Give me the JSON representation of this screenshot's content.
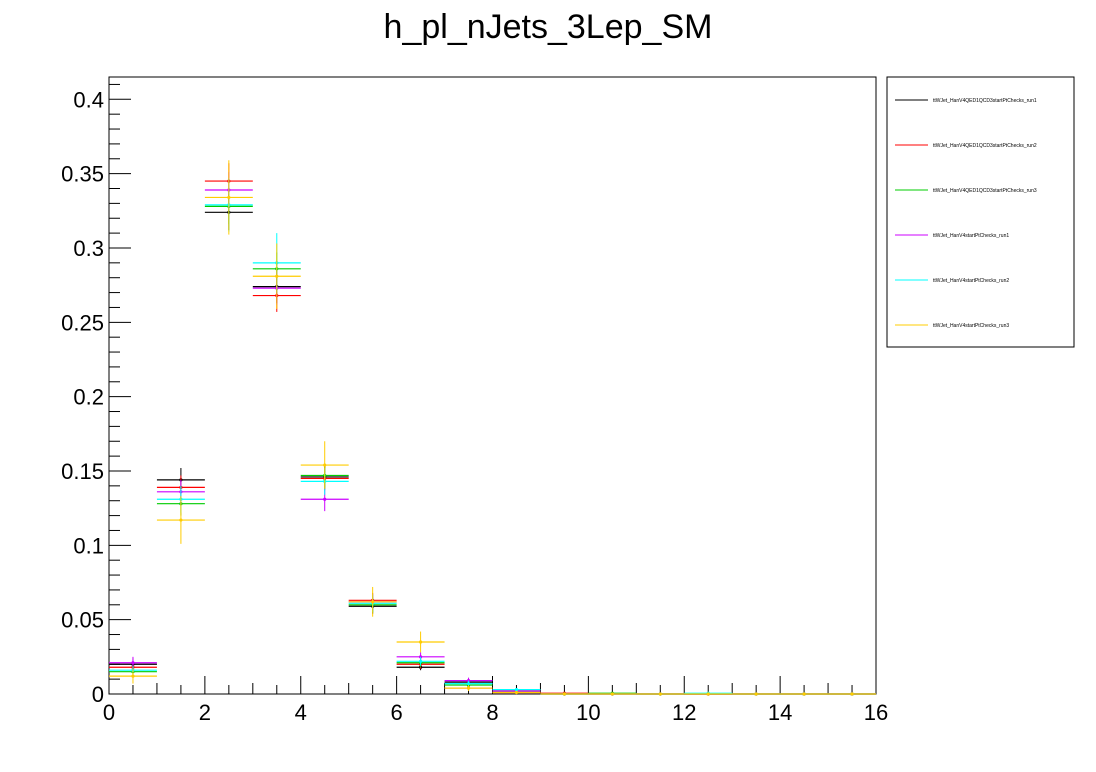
{
  "chart_data": {
    "type": "scatter",
    "title": "h_pl_nJets_3Lep_SM",
    "xlabel": "",
    "ylabel": "",
    "xlim": [
      0,
      16
    ],
    "ylim": [
      0,
      0.415
    ],
    "bin_width": 1,
    "x_ticks": [
      {
        "value": 0,
        "label": "0"
      },
      {
        "value": 2,
        "label": "2"
      },
      {
        "value": 4,
        "label": "4"
      },
      {
        "value": 6,
        "label": "6"
      },
      {
        "value": 8,
        "label": "8"
      },
      {
        "value": 10,
        "label": "10"
      },
      {
        "value": 12,
        "label": "12"
      },
      {
        "value": 14,
        "label": "14"
      },
      {
        "value": 16,
        "label": "16"
      }
    ],
    "y_ticks": [
      {
        "value": 0,
        "label": "0"
      },
      {
        "value": 0.05,
        "label": "0.05"
      },
      {
        "value": 0.1,
        "label": "0.1"
      },
      {
        "value": 0.15,
        "label": "0.15"
      },
      {
        "value": 0.2,
        "label": "0.2"
      },
      {
        "value": 0.25,
        "label": "0.25"
      },
      {
        "value": 0.3,
        "label": "0.3"
      },
      {
        "value": 0.35,
        "label": "0.35"
      },
      {
        "value": 0.4,
        "label": "0.4"
      }
    ],
    "legend_position": "right",
    "x": [
      0.5,
      1.5,
      2.5,
      3.5,
      4.5,
      5.5,
      6.5,
      7.5,
      8.5,
      9.5,
      10.5,
      11.5,
      12.5,
      13.5,
      14.5,
      15.5
    ],
    "series": [
      {
        "name": "ttWJet_HanV4QED1QCD3startPtChecks_run1",
        "color": "#000000",
        "values": [
          0.02,
          0.144,
          0.324,
          0.274,
          0.146,
          0.059,
          0.018,
          0.008,
          0.002,
          0.0,
          0.0,
          0.0,
          0.0,
          0.0,
          0.0,
          0.0
        ],
        "errors": [
          0.004,
          0.008,
          0.012,
          0.011,
          0.008,
          0.005,
          0.002,
          0.002,
          0.001,
          0.0,
          0.0,
          0.0,
          0.0,
          0.0,
          0.0,
          0.0
        ]
      },
      {
        "name": "ttWJet_HanV4QED1QCD3startPtChecks_run2",
        "color": "#ff0000",
        "values": [
          0.018,
          0.139,
          0.345,
          0.268,
          0.145,
          0.063,
          0.02,
          0.004,
          0.001,
          0.0005,
          0.0,
          0.0,
          0.0,
          0.0,
          0.0,
          0.0
        ],
        "errors": [
          0.003,
          0.008,
          0.012,
          0.011,
          0.008,
          0.005,
          0.003,
          0.001,
          0.001,
          0.0,
          0.0,
          0.0,
          0.0,
          0.0,
          0.0,
          0.0
        ]
      },
      {
        "name": "ttWJet_HanV4QED1QCD3startPtChecks_run3",
        "color": "#00cc00",
        "values": [
          0.015,
          0.128,
          0.328,
          0.286,
          0.147,
          0.06,
          0.021,
          0.006,
          0.002,
          0.0,
          0.0005,
          0.0,
          0.0,
          0.0,
          0.0,
          0.0
        ],
        "errors": [
          0.003,
          0.008,
          0.012,
          0.011,
          0.008,
          0.005,
          0.003,
          0.002,
          0.001,
          0.0,
          0.0,
          0.0,
          0.0,
          0.0,
          0.0,
          0.0
        ]
      },
      {
        "name": "ttWJet_HanV4startPtChecks_run1",
        "color": "#cc00ff",
        "values": [
          0.021,
          0.136,
          0.339,
          0.273,
          0.131,
          0.062,
          0.025,
          0.009,
          0.002,
          0.0,
          0.0,
          0.0,
          0.0,
          0.0,
          0.0,
          0.0
        ],
        "errors": [
          0.004,
          0.008,
          0.012,
          0.011,
          0.008,
          0.005,
          0.003,
          0.002,
          0.001,
          0.0,
          0.0,
          0.0,
          0.0,
          0.0,
          0.0,
          0.0
        ]
      },
      {
        "name": "ttWJet_HanV4startPtChecks_run2",
        "color": "#00ffff",
        "values": [
          0.016,
          0.131,
          0.329,
          0.29,
          0.143,
          0.061,
          0.022,
          0.007,
          0.003,
          0.0,
          0.0,
          0.0,
          0.0005,
          0.0,
          0.0,
          0.0
        ],
        "errors": [
          0.003,
          0.009,
          0.018,
          0.02,
          0.009,
          0.006,
          0.003,
          0.002,
          0.001,
          0.0,
          0.0,
          0.0,
          0.0,
          0.0,
          0.0,
          0.0
        ]
      },
      {
        "name": "ttWJet_HanV4startPtChecks_run3",
        "color": "#ffcc00",
        "values": [
          0.012,
          0.117,
          0.334,
          0.281,
          0.154,
          0.062,
          0.035,
          0.004,
          0.001,
          0.0,
          0.0,
          0.0,
          0.0,
          0.0,
          0.0,
          0.0
        ],
        "errors": [
          0.005,
          0.016,
          0.025,
          0.022,
          0.016,
          0.01,
          0.007,
          0.002,
          0.001,
          0.0,
          0.0,
          0.0,
          0.0,
          0.0,
          0.0,
          0.0
        ]
      }
    ]
  }
}
